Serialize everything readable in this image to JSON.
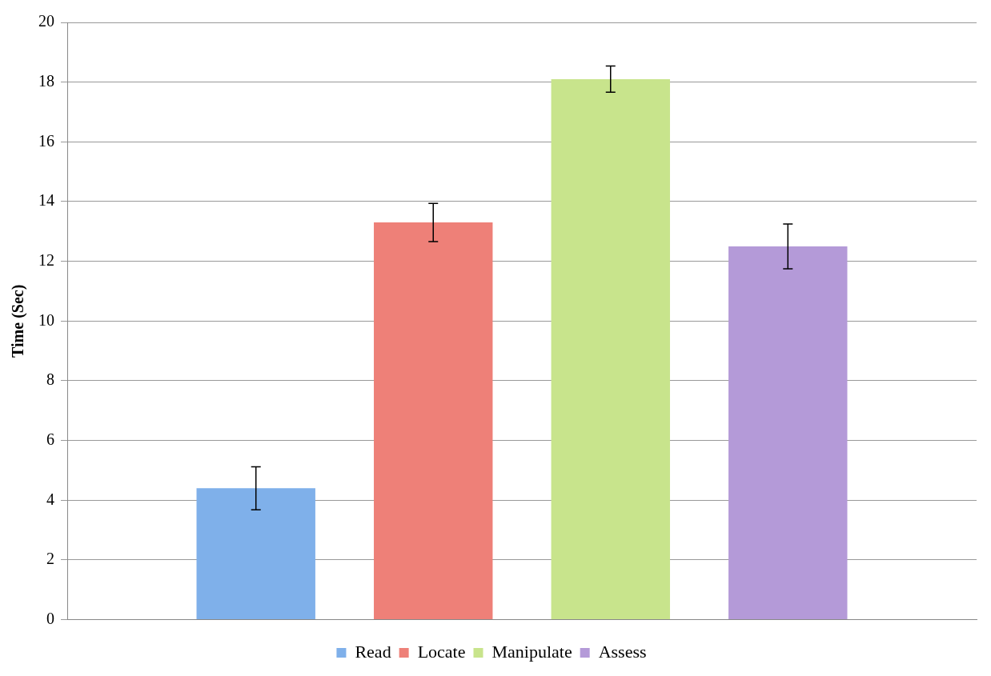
{
  "chart_data": {
    "type": "bar",
    "ylabel": "Time (Sec)",
    "categories": [
      null
    ],
    "series": [
      {
        "name": "Read",
        "color": "#7fb0ea",
        "values": [
          4.4
        ],
        "errors": [
          0.72
        ]
      },
      {
        "name": "Locate",
        "color": "#ee8078",
        "values": [
          13.3
        ],
        "errors": [
          0.64
        ]
      },
      {
        "name": "Manipulate",
        "color": "#c8e48c",
        "values": [
          18.1
        ],
        "errors": [
          0.44
        ]
      },
      {
        "name": "Assess",
        "color": "#b49ad8",
        "values": [
          12.5
        ],
        "errors": [
          0.75
        ]
      }
    ],
    "ylim": [
      0,
      20
    ],
    "yticks": [
      0,
      2,
      4,
      6,
      8,
      10,
      12,
      14,
      16,
      18,
      20
    ],
    "grid": "y",
    "legend": "bottom"
  }
}
